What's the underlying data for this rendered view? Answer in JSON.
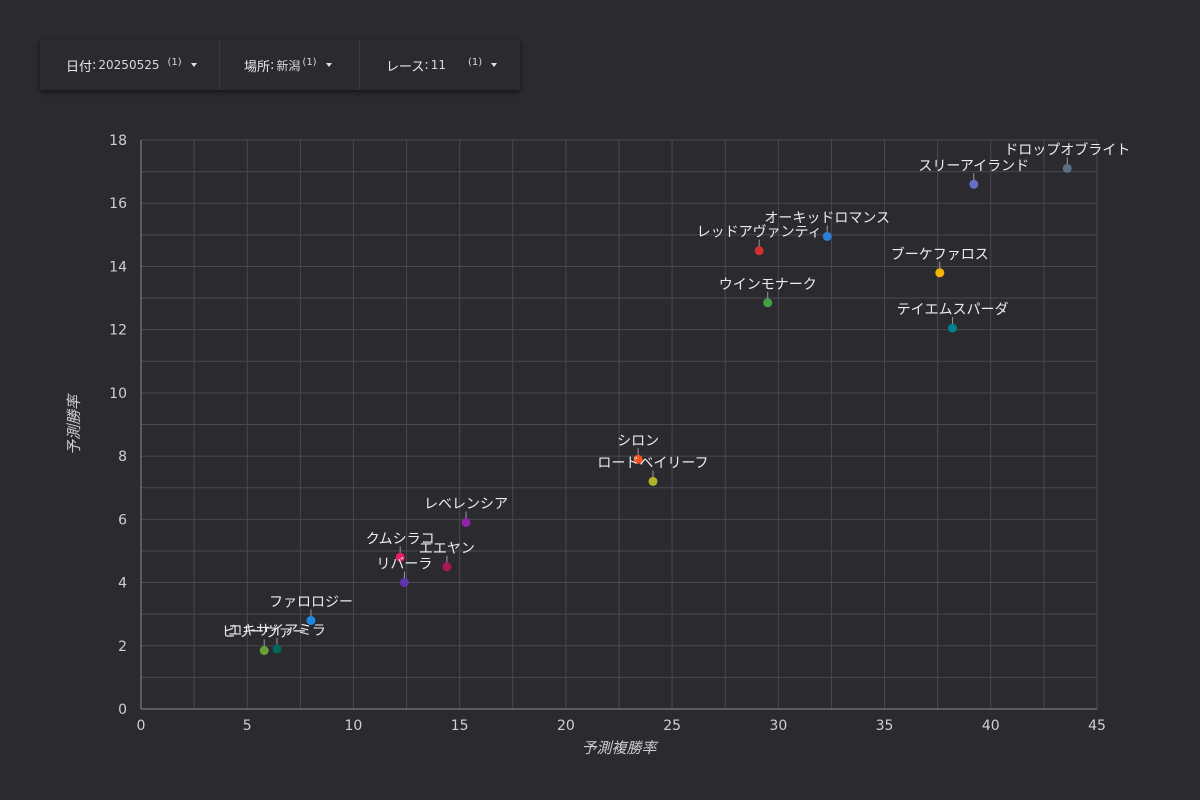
{
  "filters": {
    "date": {
      "label": "日付",
      "value": "20250525",
      "count": "(1)"
    },
    "venue": {
      "label": "場所",
      "value": "新潟",
      "count": "(1)"
    },
    "race": {
      "label": "レース",
      "value": "11",
      "count": "(1)"
    }
  },
  "chart_data": {
    "type": "scatter",
    "xlabel": "予測複勝率",
    "ylabel": "予測勝率",
    "xlim": [
      0,
      45
    ],
    "ylim": [
      0,
      18
    ],
    "xticks": [
      0,
      5,
      10,
      15,
      20,
      25,
      30,
      35,
      40,
      45
    ],
    "yticks": [
      0,
      2,
      4,
      6,
      8,
      10,
      12,
      14,
      16,
      18
    ],
    "grid": true,
    "points": [
      {
        "name": "ドロップオブライト",
        "x": 43.6,
        "y": 17.1,
        "color": "#5b6f82"
      },
      {
        "name": "スリーアイランド",
        "x": 39.2,
        "y": 16.6,
        "color": "#6270c8"
      },
      {
        "name": "オーキッドロマンス",
        "x": 32.3,
        "y": 14.95,
        "color": "#2a7fd6"
      },
      {
        "name": "レッドアヴァンティ",
        "x": 29.1,
        "y": 14.5,
        "color": "#d0312d"
      },
      {
        "name": "ブーケファロス",
        "x": 37.6,
        "y": 13.8,
        "color": "#f4b400"
      },
      {
        "name": "ウインモナーク",
        "x": 29.5,
        "y": 12.85,
        "color": "#43a047"
      },
      {
        "name": "テイエムスパーダ",
        "x": 38.2,
        "y": 12.05,
        "color": "#00838f"
      },
      {
        "name": "シロン",
        "x": 23.4,
        "y": 7.9,
        "color": "#f4511e"
      },
      {
        "name": "ロードベイリーフ",
        "x": 24.1,
        "y": 7.2,
        "color": "#afb42b"
      },
      {
        "name": "レベレンシア",
        "x": 15.3,
        "y": 5.9,
        "color": "#8e24aa"
      },
      {
        "name": "クムシラコ",
        "x": 12.2,
        "y": 4.8,
        "color": "#e91e63"
      },
      {
        "name": "エエヤン",
        "x": 14.4,
        "y": 4.5,
        "color": "#ad1457"
      },
      {
        "name": "リバーラ",
        "x": 12.4,
        "y": 4.0,
        "color": "#5e35b1"
      },
      {
        "name": "ファロロジー",
        "x": 8.0,
        "y": 2.8,
        "color": "#1e88e5"
      },
      {
        "name": "ビリーヴァー",
        "x": 5.8,
        "y": 1.85,
        "color": "#689f38"
      },
      {
        "name": "エキサイアミラ",
        "x": 6.4,
        "y": 1.9,
        "color": "#00695c"
      }
    ]
  }
}
